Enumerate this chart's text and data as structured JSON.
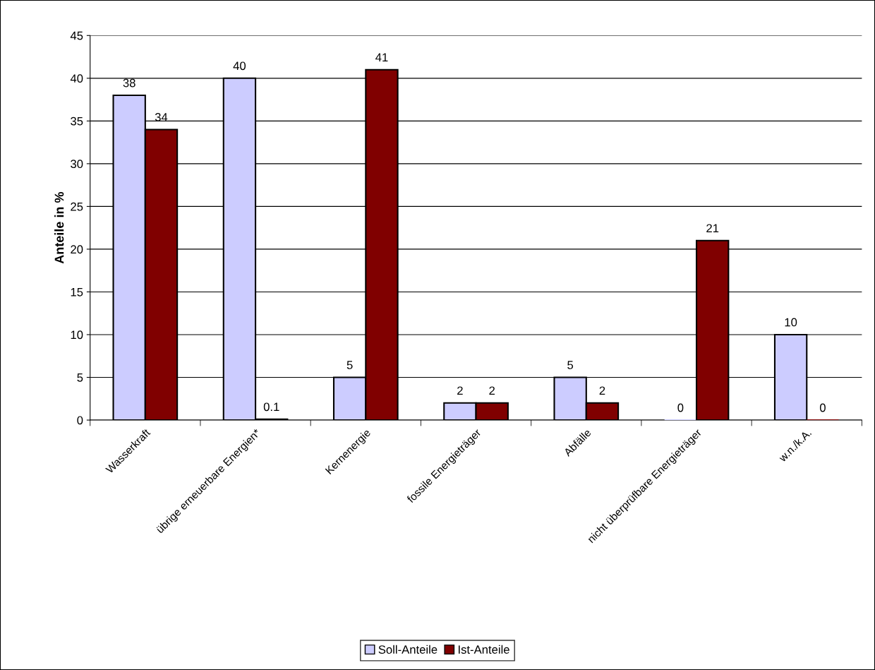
{
  "chart_data": {
    "type": "bar",
    "ylabel": "Anteile in %",
    "categories": [
      "Wasserkraft",
      "übrige erneuerbare Energien*",
      "Kernenergie",
      "fossile Energieträger",
      "Abfälle",
      "nicht überprüfbare Energieträger",
      "w.n./k.A."
    ],
    "series": [
      {
        "name": "Soll-Anteile",
        "color": "#ccccff",
        "values": [
          38,
          40,
          5,
          2,
          5,
          0,
          10
        ]
      },
      {
        "name": "Ist-Anteile",
        "color": "#800000",
        "values": [
          34,
          0.1,
          41,
          2,
          2,
          21,
          0
        ]
      }
    ],
    "ylim": [
      0,
      45
    ],
    "yticks": [
      0,
      5,
      10,
      15,
      20,
      25,
      30,
      35,
      40,
      45
    ],
    "grid": "y",
    "legend": "bottom",
    "data_labels": true
  }
}
